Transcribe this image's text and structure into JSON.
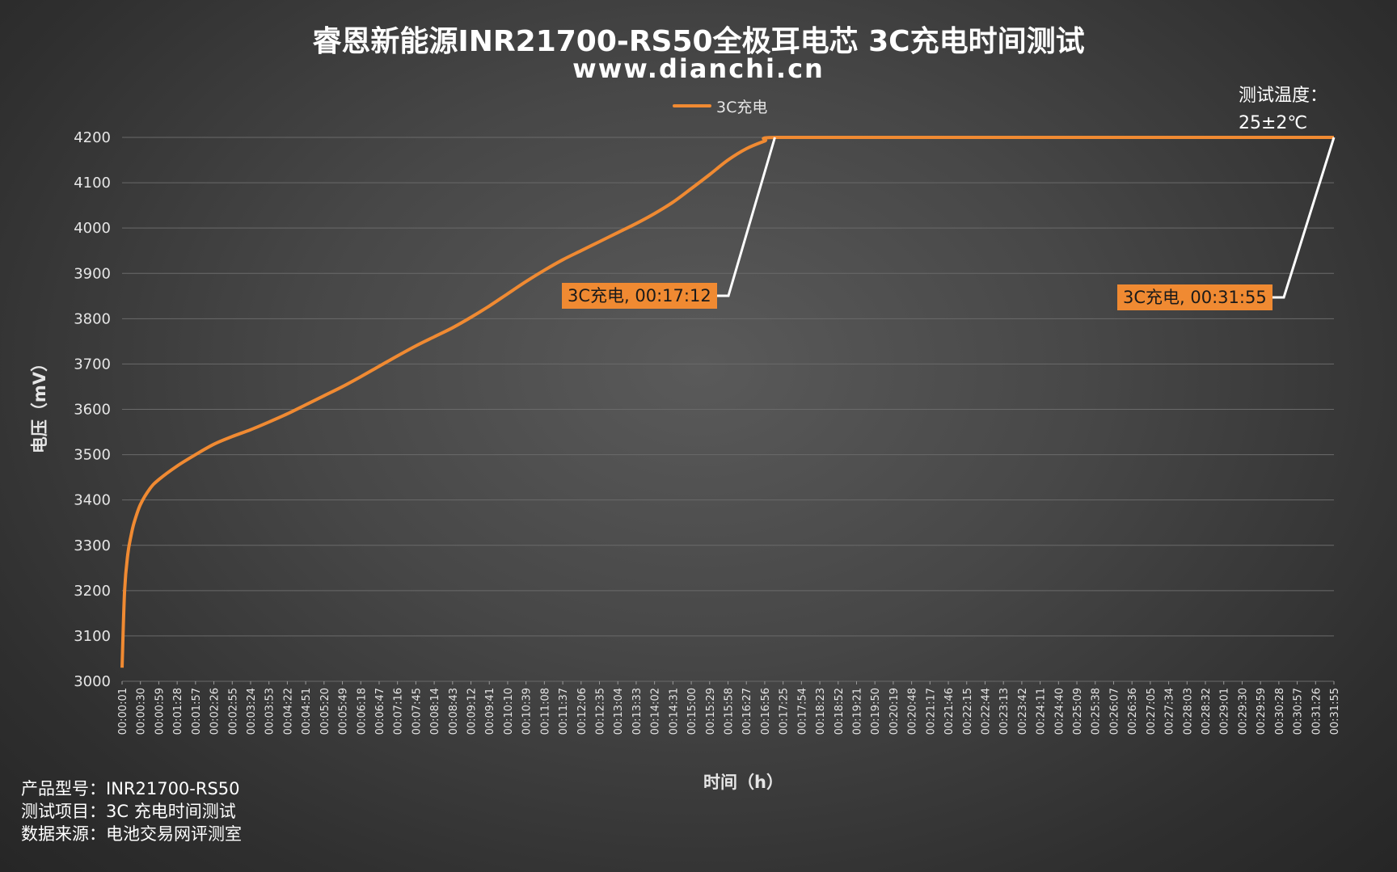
{
  "title": "睿恩新能源INR21700-RS50全极耳电芯 3C充电时间测试",
  "subtitle": "www.dianchi.cn",
  "legend": {
    "series_name": "3C充电"
  },
  "temperature": {
    "line1": "测试温度：",
    "line2": "25±2℃"
  },
  "footer": {
    "line1": "产品型号：INR21700-RS50",
    "line2": "测试项目：3C 充电时间测试",
    "line3": "数据来源：电池交易网评测室"
  },
  "colors": {
    "series": "#f08a32",
    "leader": "#ffffff",
    "grid": "#6a6a6a"
  },
  "chart_data": {
    "type": "line",
    "ylabel": "电压（mV）",
    "xlabel": "时间（h）",
    "ylim": [
      3000,
      4200
    ],
    "y_ticks": [
      3000,
      3100,
      3200,
      3300,
      3400,
      3500,
      3600,
      3700,
      3800,
      3900,
      4000,
      4100,
      4200
    ],
    "grid": true,
    "legend_position": "top",
    "x_tick_labels": [
      "00:00:01",
      "00:00:30",
      "00:00:59",
      "00:01:28",
      "00:01:57",
      "00:02:26",
      "00:02:55",
      "00:03:24",
      "00:03:53",
      "00:04:22",
      "00:04:51",
      "00:05:20",
      "00:05:49",
      "00:06:18",
      "00:06:47",
      "00:07:16",
      "00:07:45",
      "00:08:14",
      "00:08:43",
      "00:09:12",
      "00:09:41",
      "00:10:10",
      "00:10:39",
      "00:11:08",
      "00:11:37",
      "00:12:06",
      "00:12:35",
      "00:13:04",
      "00:13:33",
      "00:14:02",
      "00:14:31",
      "00:15:00",
      "00:15:29",
      "00:15:58",
      "00:16:27",
      "00:16:56",
      "00:17:25",
      "00:17:54",
      "00:18:23",
      "00:18:52",
      "00:19:21",
      "00:19:50",
      "00:20:19",
      "00:20:48",
      "00:21:17",
      "00:21:46",
      "00:22:15",
      "00:22:44",
      "00:23:13",
      "00:23:42",
      "00:24:11",
      "00:24:40",
      "00:25:09",
      "00:25:38",
      "00:26:07",
      "00:26:36",
      "00:27:05",
      "00:27:34",
      "00:28:03",
      "00:28:32",
      "00:29:01",
      "00:29:30",
      "00:29:59",
      "00:30:28",
      "00:30:57",
      "00:31:26",
      "00:31:55"
    ],
    "series": [
      {
        "name": "3C充电",
        "points": [
          [
            "00:00:01",
            3030
          ],
          [
            "00:00:05",
            3200
          ],
          [
            "00:00:10",
            3280
          ],
          [
            "00:00:15",
            3320
          ],
          [
            "00:00:20",
            3350
          ],
          [
            "00:00:30",
            3390
          ],
          [
            "00:00:45",
            3425
          ],
          [
            "00:00:59",
            3445
          ],
          [
            "00:01:28",
            3475
          ],
          [
            "00:01:57",
            3500
          ],
          [
            "00:02:26",
            3523
          ],
          [
            "00:02:55",
            3540
          ],
          [
            "00:03:24",
            3555
          ],
          [
            "00:03:53",
            3572
          ],
          [
            "00:04:22",
            3590
          ],
          [
            "00:04:51",
            3610
          ],
          [
            "00:05:20",
            3630
          ],
          [
            "00:05:49",
            3650
          ],
          [
            "00:06:18",
            3672
          ],
          [
            "00:06:47",
            3695
          ],
          [
            "00:07:16",
            3718
          ],
          [
            "00:07:45",
            3740
          ],
          [
            "00:08:14",
            3760
          ],
          [
            "00:08:43",
            3780
          ],
          [
            "00:09:12",
            3803
          ],
          [
            "00:09:41",
            3828
          ],
          [
            "00:10:10",
            3855
          ],
          [
            "00:10:39",
            3882
          ],
          [
            "00:11:08",
            3907
          ],
          [
            "00:11:37",
            3930
          ],
          [
            "00:12:06",
            3950
          ],
          [
            "00:12:35",
            3970
          ],
          [
            "00:13:04",
            3990
          ],
          [
            "00:13:33",
            4010
          ],
          [
            "00:14:02",
            4032
          ],
          [
            "00:14:31",
            4057
          ],
          [
            "00:15:00",
            4087
          ],
          [
            "00:15:29",
            4118
          ],
          [
            "00:15:58",
            4150
          ],
          [
            "00:16:27",
            4175
          ],
          [
            "00:16:56",
            4192
          ],
          [
            "00:17:12",
            4200
          ],
          [
            "00:20:19",
            4200
          ],
          [
            "00:24:11",
            4200
          ],
          [
            "00:28:03",
            4200
          ],
          [
            "00:31:55",
            4200
          ]
        ]
      }
    ],
    "annotations": [
      {
        "text": "3C充电, 00:17:12",
        "x": "00:17:12",
        "y": 4200
      },
      {
        "text": "3C充电, 00:31:55",
        "x": "00:31:55",
        "y": 4200
      }
    ]
  }
}
